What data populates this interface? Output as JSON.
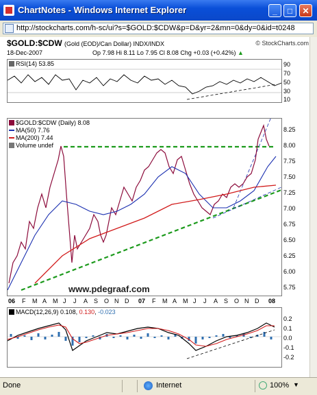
{
  "window": {
    "title": "ChartNotes - Windows Internet Explorer",
    "minimize": "_",
    "maximize": "□",
    "close": "✕"
  },
  "address": {
    "url": "http://stockcharts.com/h-sc/ui?s=$GOLD:$CDW&p=D&yr=2&mn=0&dy=0&id=t0248"
  },
  "chart_header": {
    "ticker": "$GOLD:$CDW",
    "description": "(Gold (EOD)/Can Dollar)  INDX/INDX",
    "credit": "© StockCharts.com",
    "date": "18-Dec-2007",
    "ohlc": "Op 7.98  Hi 8.11  Lo 7.95  Cl 8.08  Chg +0.03 (+0.42%)",
    "ohlc_up_arrow": "▲"
  },
  "rsi_panel": {
    "label": "RSI(14) 53.85",
    "ticks": [
      "90",
      "70",
      "50",
      "30",
      "10"
    ]
  },
  "price_panel": {
    "legend": {
      "main": "$GOLD:$CDW (Daily) 8.08",
      "ma50": "MA(50) 7.76",
      "ma200": "MA(200) 7.44",
      "volume": "Volume undef"
    },
    "ticks": [
      "8.25",
      "8.00",
      "7.75",
      "7.50",
      "7.25",
      "7.00",
      "6.75",
      "6.50",
      "6.25",
      "6.00",
      "5.75"
    ],
    "watermark": "www.pdegraaf.com"
  },
  "x_axis": [
    "06",
    "F",
    "M",
    "A",
    "M",
    "J",
    "J",
    "A",
    "S",
    "O",
    "N",
    "D",
    "07",
    "F",
    "M",
    "A",
    "M",
    "J",
    "J",
    "A",
    "S",
    "O",
    "N",
    "D",
    "08"
  ],
  "macd_panel": {
    "label": "MACD(12,26,9)",
    "macd": "0.108",
    "signal": "0.130",
    "hist": "-0.023",
    "ticks": [
      "0.2",
      "0.1",
      "0.0",
      "-0.1",
      "-0.2"
    ]
  },
  "status": {
    "text": "Done",
    "zone": "Internet",
    "zoom": "100%"
  },
  "colors": {
    "price": "#8b0a3a",
    "ma50": "#1a2fb0",
    "ma200": "#d11a1a",
    "trend": "#1c9a1c",
    "macd_hist": "#2f6fb0"
  }
}
